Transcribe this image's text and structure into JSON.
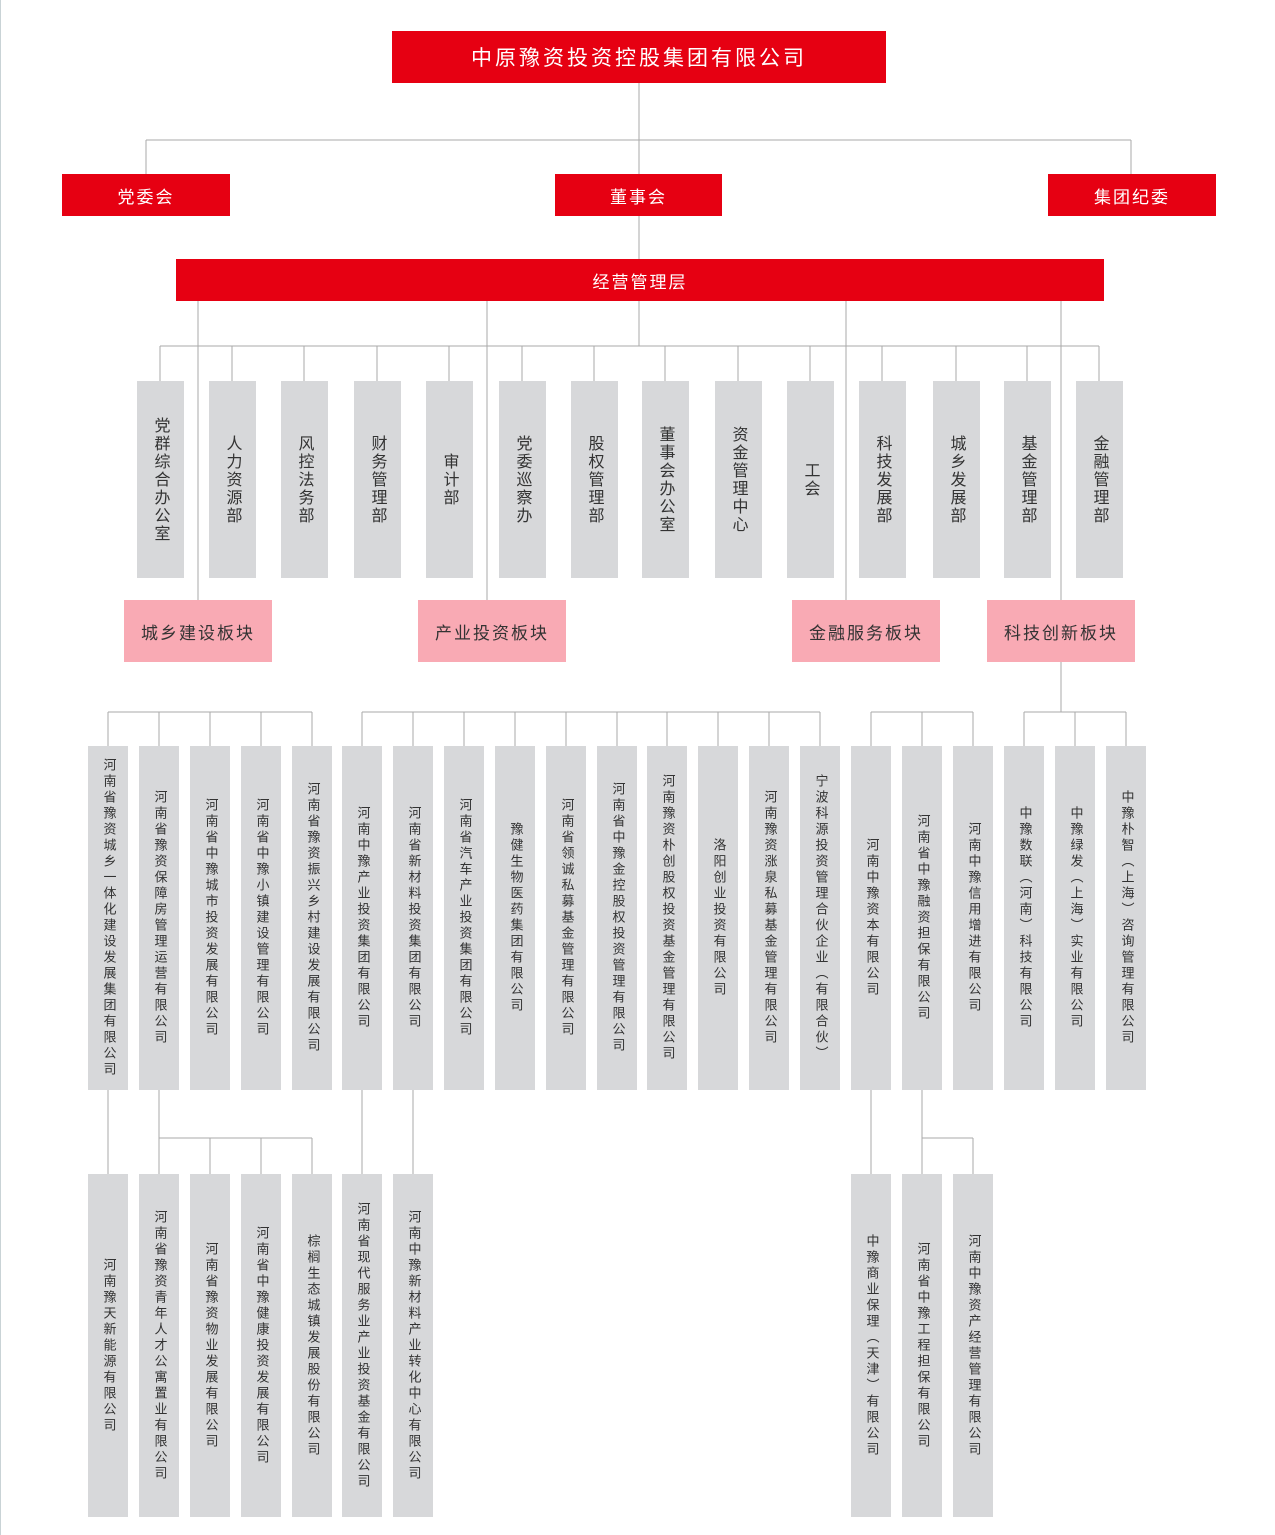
{
  "title": "中原豫资投资控股集团有限公司",
  "level2": [
    "党委会",
    "董事会",
    "集团纪委"
  ],
  "management": "经营管理层",
  "departments": [
    "党群综合办公室",
    "人力资源部",
    "风控法务部",
    "财务管理部",
    "审计部",
    "党委巡察办",
    "股权管理部",
    "董事会办公室",
    "资金管理中心",
    "工会",
    "科技发展部",
    "城乡发展部",
    "基金管理部",
    "金融管理部"
  ],
  "segments": [
    "城乡建设板块",
    "产业投资板块",
    "金融服务板块",
    "科技创新板块"
  ],
  "companies_row1": [
    "河南省豫资城乡一体化建设发展集团有限公司",
    "河南省豫资保障房管理运营有限公司",
    "河南省中豫城市投资发展有限公司",
    "河南省中豫小镇建设管理有限公司",
    "河南省豫资振兴乡村建设发展有限公司",
    "河南中豫产业投资集团有限公司",
    "河南省新材料投资集团有限公司",
    "河南省汽车产业投资集团有限公司",
    "豫健生物医药集团有限公司",
    "河南省领诚私募基金管理有限公司",
    "河南省中豫金控股权投资管理有限公司",
    "河南豫资朴创股权投资基金管理有限公司",
    "洛阳创业投资有限公司",
    "河南豫资涨泉私募基金管理有限公司",
    "宁波科源投资管理合伙企业（有限合伙）",
    "河南中豫资本有限公司",
    "河南省中豫融资担保有限公司",
    "河南中豫信用增进有限公司",
    "中豫数联（河南）科技有限公司",
    "中豫绿发（上海）实业有限公司",
    "中豫朴智（上海）咨询管理有限公司"
  ],
  "companies_row2": [
    "河南豫天新能源有限公司",
    "河南省豫资青年人才公寓置业有限公司",
    "河南省豫资物业发展有限公司",
    "河南省中豫健康投资发展有限公司",
    "棕榈生态城镇发展股份有限公司",
    "河南省现代服务业产业投资基金有限公司",
    "河南中豫新材料产业转化中心有限公司",
    "中豫商业保理（天津）有限公司",
    "河南省中豫工程担保有限公司",
    "河南中豫资产经营管理有限公司"
  ],
  "colors": {
    "primary": "#e60012",
    "segment": "#f9aab4",
    "unit": "#d7d8da",
    "line": "#aaaaaa"
  }
}
